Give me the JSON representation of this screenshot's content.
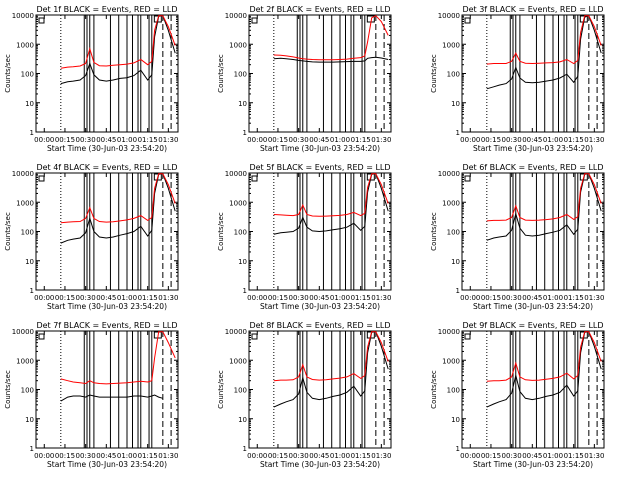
{
  "colors": {
    "events": "#000000",
    "lld": "#ff0000",
    "axis": "#000000",
    "background": "#ffffff"
  },
  "chart_data": [
    {
      "type": "line",
      "title": "Det 1f BLACK = Events, RED = LLD",
      "xlabel": "Start Time (30-Jun-03 23:54:20)",
      "ylabel": "Counts/sec",
      "yscale": "log",
      "ylim": [
        1,
        10000
      ],
      "y_ticks": [
        "1",
        "10",
        "100",
        "1000",
        "10000"
      ],
      "x_ticks": [
        "00:00",
        "00:15",
        "00:30",
        "00:45",
        "01:00",
        "01:15",
        "01:30"
      ],
      "xlim_minutes": [
        -6,
        97
      ],
      "x_minutes": [
        12,
        17,
        21,
        26,
        30,
        33,
        36,
        40,
        45,
        50,
        55,
        60,
        65,
        70,
        75,
        78,
        80,
        83,
        86,
        90,
        95
      ],
      "series": [
        {
          "values": [
            45,
            52,
            55,
            60,
            85,
            220,
            90,
            60,
            55,
            60,
            68,
            72,
            85,
            130,
            60,
            90,
            1800,
            9000,
            9500,
            3000,
            500
          ]
        },
        {
          "values": [
            150,
            165,
            170,
            180,
            220,
            700,
            240,
            185,
            180,
            190,
            200,
            210,
            230,
            300,
            200,
            260,
            3000,
            9500,
            9500,
            4000,
            900
          ]
        }
      ],
      "dotted_lines": [
        -6,
        12
      ],
      "solid_lines": [
        29,
        31,
        33,
        36,
        48,
        54,
        60,
        64,
        68,
        70,
        76,
        78
      ],
      "dashed_lines": [
        86,
        92
      ]
    },
    {
      "type": "line",
      "title": "Det 2f BLACK = Events, RED = LLD",
      "xlabel": "Start Time (30-Jun-03 23:54:20)",
      "ylabel": "Counts/sec",
      "yscale": "log",
      "ylim": [
        1,
        10000
      ],
      "y_ticks": [
        "1",
        "10",
        "100",
        "1000",
        "10000"
      ],
      "x_ticks": [
        "00:00",
        "00:15",
        "00:30",
        "00:45",
        "01:00",
        "01:15",
        "01:30"
      ],
      "xlim_minutes": [
        -6,
        97
      ],
      "x_minutes": [
        12,
        17,
        21,
        26,
        30,
        33,
        36,
        40,
        45,
        50,
        55,
        60,
        65,
        70,
        75,
        78,
        80,
        83,
        86,
        90,
        95
      ],
      "series": [
        {
          "values": [
            320,
            330,
            320,
            300,
            280,
            270,
            260,
            250,
            245,
            245,
            245,
            250,
            255,
            260,
            260,
            270,
            330,
            350,
            360,
            340,
            300
          ]
        },
        {
          "values": [
            430,
            420,
            400,
            370,
            340,
            320,
            310,
            300,
            295,
            295,
            295,
            300,
            310,
            330,
            350,
            400,
            1200,
            8000,
            9500,
            6000,
            2000
          ]
        }
      ],
      "dotted_lines": [
        -6,
        12
      ],
      "solid_lines": [
        29,
        31,
        33,
        36,
        48,
        54,
        60,
        64,
        68,
        70,
        76,
        78
      ],
      "dashed_lines": [
        86,
        92
      ]
    },
    {
      "type": "line",
      "title": "Det 3f BLACK = Events, RED = LLD",
      "xlabel": "Start Time (30-Jun-03 23:54:20)",
      "ylabel": "Counts/sec",
      "yscale": "log",
      "ylim": [
        1,
        10000
      ],
      "y_ticks": [
        "1",
        "10",
        "100",
        "1000",
        "10000"
      ],
      "x_ticks": [
        "00:00",
        "00:15",
        "00:30",
        "00:45",
        "01:00",
        "01:15",
        "01:30"
      ],
      "xlim_minutes": [
        -6,
        97
      ],
      "x_minutes": [
        12,
        17,
        21,
        26,
        30,
        33,
        36,
        40,
        45,
        50,
        55,
        60,
        65,
        70,
        75,
        78,
        80,
        83,
        86,
        90,
        95
      ],
      "series": [
        {
          "values": [
            30,
            35,
            40,
            45,
            65,
            160,
            70,
            50,
            48,
            50,
            55,
            60,
            70,
            95,
            50,
            80,
            1500,
            8500,
            9500,
            3000,
            500
          ]
        },
        {
          "values": [
            210,
            220,
            220,
            220,
            260,
            500,
            260,
            225,
            220,
            225,
            230,
            235,
            250,
            300,
            220,
            280,
            2500,
            9500,
            9500,
            4000,
            900
          ]
        }
      ],
      "dotted_lines": [
        -6,
        12
      ],
      "solid_lines": [
        29,
        31,
        33,
        36,
        48,
        54,
        60,
        64,
        68,
        70,
        76,
        78
      ],
      "dashed_lines": [
        86,
        92
      ]
    },
    {
      "type": "line",
      "title": "Det 4f BLACK = Events, RED = LLD",
      "xlabel": "Start Time (30-Jun-03 23:54:20)",
      "ylabel": "Counts/sec",
      "yscale": "log",
      "ylim": [
        1,
        10000
      ],
      "y_ticks": [
        "1",
        "10",
        "100",
        "1000",
        "10000"
      ],
      "x_ticks": [
        "00:00",
        "00:15",
        "00:30",
        "00:45",
        "01:00",
        "01:15",
        "01:30"
      ],
      "xlim_minutes": [
        -6,
        97
      ],
      "x_minutes": [
        12,
        17,
        21,
        26,
        30,
        33,
        36,
        40,
        45,
        50,
        55,
        60,
        65,
        70,
        75,
        78,
        80,
        83,
        86,
        90,
        95
      ],
      "series": [
        {
          "values": [
            40,
            50,
            55,
            60,
            90,
            280,
            100,
            65,
            60,
            65,
            75,
            85,
            100,
            150,
            70,
            110,
            2000,
            9000,
            9500,
            3000,
            500
          ]
        },
        {
          "values": [
            200,
            210,
            215,
            220,
            280,
            650,
            280,
            220,
            210,
            215,
            230,
            250,
            280,
            350,
            240,
            300,
            3000,
            9500,
            9500,
            4000,
            900
          ]
        }
      ],
      "dotted_lines": [
        -6,
        12
      ],
      "solid_lines": [
        29,
        31,
        33,
        36,
        48,
        54,
        60,
        64,
        68,
        70,
        76,
        78
      ],
      "dashed_lines": [
        86,
        92
      ]
    },
    {
      "type": "line",
      "title": "Det 5f BLACK = Events, RED = LLD",
      "xlabel": "Start Time (30-Jun-03 23:54:20)",
      "ylabel": "Counts/sec",
      "yscale": "log",
      "ylim": [
        1,
        10000
      ],
      "y_ticks": [
        "1",
        "10",
        "100",
        "1000",
        "10000"
      ],
      "x_ticks": [
        "00:00",
        "00:15",
        "00:30",
        "00:45",
        "01:00",
        "01:15",
        "01:30"
      ],
      "xlim_minutes": [
        -6,
        97
      ],
      "x_minutes": [
        12,
        17,
        21,
        26,
        30,
        33,
        36,
        40,
        45,
        50,
        55,
        60,
        65,
        70,
        75,
        78,
        80,
        83,
        86,
        90,
        95
      ],
      "series": [
        {
          "values": [
            80,
            90,
            95,
            100,
            130,
            300,
            140,
            105,
            100,
            105,
            115,
            125,
            140,
            190,
            110,
            150,
            2200,
            9000,
            9500,
            3000,
            500
          ]
        },
        {
          "values": [
            380,
            370,
            360,
            350,
            380,
            800,
            380,
            340,
            330,
            335,
            345,
            355,
            380,
            450,
            350,
            420,
            3200,
            9500,
            9500,
            4000,
            900
          ]
        }
      ],
      "dotted_lines": [
        -6,
        12
      ],
      "solid_lines": [
        29,
        31,
        33,
        36,
        48,
        54,
        60,
        64,
        68,
        70,
        76,
        78
      ],
      "dashed_lines": [
        86,
        92
      ]
    },
    {
      "type": "line",
      "title": "Det 6f BLACK = Events, RED = LLD",
      "xlabel": "Start Time (30-Jun-03 23:54:20)",
      "ylabel": "Counts/sec",
      "yscale": "log",
      "ylim": [
        1,
        10000
      ],
      "y_ticks": [
        "1",
        "10",
        "100",
        "1000",
        "10000"
      ],
      "x_ticks": [
        "00:00",
        "00:15",
        "00:30",
        "00:45",
        "01:00",
        "01:15",
        "01:30"
      ],
      "xlim_minutes": [
        -6,
        97
      ],
      "x_minutes": [
        12,
        17,
        21,
        26,
        30,
        33,
        36,
        40,
        45,
        50,
        55,
        60,
        65,
        70,
        75,
        78,
        80,
        83,
        86,
        90,
        95
      ],
      "series": [
        {
          "values": [
            50,
            60,
            65,
            70,
            110,
            400,
            130,
            75,
            70,
            75,
            85,
            95,
            110,
            170,
            80,
            120,
            2200,
            9000,
            9500,
            3000,
            500
          ]
        },
        {
          "values": [
            230,
            240,
            240,
            245,
            300,
            750,
            300,
            245,
            240,
            245,
            255,
            270,
            300,
            380,
            260,
            320,
            3000,
            9500,
            9500,
            4000,
            900
          ]
        }
      ],
      "dotted_lines": [
        -6,
        12
      ],
      "solid_lines": [
        29,
        31,
        33,
        36,
        48,
        54,
        60,
        64,
        68,
        70,
        76,
        78
      ],
      "dashed_lines": [
        86,
        92
      ]
    },
    {
      "type": "line",
      "title": "Det 7f BLACK = Events, RED = LLD",
      "xlabel": "Start Time (30-Jun-03 23:54:20)",
      "ylabel": "Counts/sec",
      "yscale": "log",
      "ylim": [
        1,
        10000
      ],
      "y_ticks": [
        "1",
        "10",
        "100",
        "1000",
        "10000"
      ],
      "x_ticks": [
        "00:00",
        "00:15",
        "00:30",
        "00:45",
        "01:00",
        "01:15",
        "01:30"
      ],
      "xlim_minutes": [
        -6,
        97
      ],
      "x_minutes": [
        12,
        17,
        21,
        26,
        30,
        33,
        36,
        40,
        45,
        50,
        55,
        60,
        65,
        70,
        75,
        78,
        80,
        83,
        86,
        90,
        95
      ],
      "series": [
        {
          "values": [
            40,
            55,
            60,
            60,
            55,
            65,
            60,
            55,
            55,
            55,
            55,
            55,
            60,
            60,
            55,
            60,
            65,
            55,
            50,
            null,
            null
          ]
        },
        {
          "values": [
            230,
            200,
            180,
            170,
            160,
            200,
            170,
            160,
            155,
            160,
            165,
            170,
            180,
            190,
            180,
            200,
            1200,
            9500,
            9500,
            4000,
            1200
          ]
        }
      ],
      "dotted_lines": [
        -6,
        12
      ],
      "solid_lines": [
        29,
        31,
        33,
        36,
        48,
        54,
        60,
        64,
        68,
        70,
        76,
        78
      ],
      "dashed_lines": [
        86,
        92
      ]
    },
    {
      "type": "line",
      "title": "Det 8f BLACK = Events, RED = LLD",
      "xlabel": "Start Time (30-Jun-03 23:54:20)",
      "ylabel": "Counts/sec",
      "yscale": "log",
      "ylim": [
        1,
        10000
      ],
      "y_ticks": [
        "1",
        "10",
        "100",
        "1000",
        "10000"
      ],
      "x_ticks": [
        "00:00",
        "00:15",
        "00:30",
        "00:45",
        "01:00",
        "01:15",
        "01:30"
      ],
      "xlim_minutes": [
        -6,
        97
      ],
      "x_minutes": [
        12,
        17,
        21,
        26,
        30,
        33,
        36,
        40,
        45,
        50,
        55,
        60,
        65,
        70,
        75,
        78,
        80,
        83,
        86,
        90,
        95
      ],
      "series": [
        {
          "values": [
            25,
            32,
            38,
            45,
            70,
            250,
            80,
            50,
            45,
            50,
            58,
            65,
            80,
            130,
            60,
            90,
            1800,
            9000,
            9500,
            3000,
            500
          ]
        },
        {
          "values": [
            200,
            210,
            210,
            215,
            270,
            700,
            270,
            220,
            210,
            215,
            230,
            245,
            270,
            350,
            240,
            300,
            2800,
            9500,
            9500,
            4000,
            900
          ]
        }
      ],
      "dotted_lines": [
        -6,
        12
      ],
      "solid_lines": [
        29,
        31,
        33,
        36,
        48,
        54,
        60,
        64,
        68,
        70,
        76,
        78
      ],
      "dashed_lines": [
        86,
        92
      ]
    },
    {
      "type": "line",
      "title": "Det 9f BLACK = Events, RED = LLD",
      "xlabel": "Start Time (30-Jun-03 23:54:20)",
      "ylabel": "Counts/sec",
      "yscale": "log",
      "ylim": [
        1,
        10000
      ],
      "y_ticks": [
        "1",
        "10",
        "100",
        "1000",
        "10000"
      ],
      "x_ticks": [
        "00:00",
        "00:15",
        "00:30",
        "00:45",
        "01:00",
        "01:15",
        "01:30"
      ],
      "xlim_minutes": [
        -6,
        97
      ],
      "x_minutes": [
        12,
        17,
        21,
        26,
        30,
        33,
        36,
        40,
        45,
        50,
        55,
        60,
        65,
        70,
        75,
        78,
        80,
        83,
        86,
        90,
        95
      ],
      "series": [
        {
          "values": [
            25,
            32,
            38,
            45,
            75,
            300,
            85,
            50,
            45,
            50,
            58,
            65,
            80,
            140,
            60,
            90,
            1800,
            9000,
            9500,
            3000,
            500
          ]
        },
        {
          "values": [
            190,
            200,
            200,
            210,
            270,
            800,
            270,
            215,
            205,
            210,
            225,
            240,
            270,
            360,
            230,
            300,
            2800,
            9500,
            9500,
            4000,
            900
          ]
        }
      ],
      "dotted_lines": [
        -6,
        12
      ],
      "solid_lines": [
        29,
        31,
        33,
        36,
        48,
        54,
        60,
        64,
        68,
        70,
        76,
        78
      ],
      "dashed_lines": [
        86,
        92
      ]
    }
  ]
}
